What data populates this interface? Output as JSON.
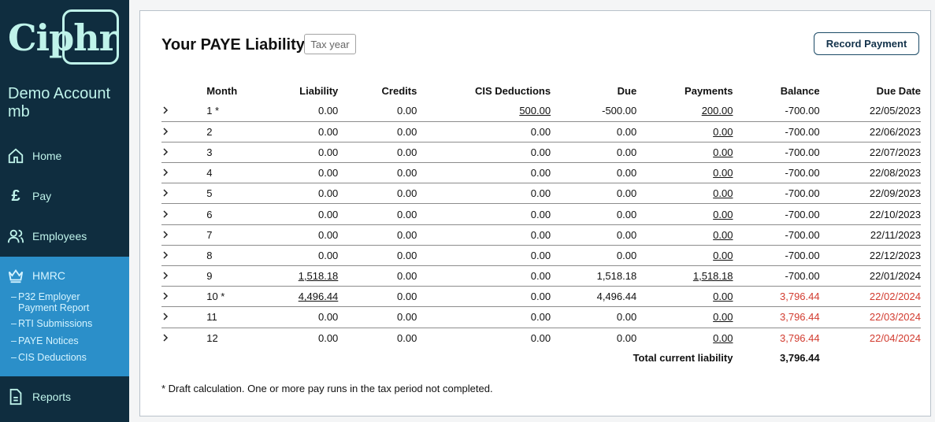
{
  "sidebar": {
    "logo": "Ciphr",
    "account": "Demo Account mb",
    "nav": [
      {
        "label": "Home",
        "icon": "home-icon"
      },
      {
        "label": "Pay",
        "icon": "pound-icon"
      },
      {
        "label": "Employees",
        "icon": "employees-icon"
      },
      {
        "label": "HMRC",
        "icon": "crown-icon"
      },
      {
        "label": "Reports",
        "icon": "document-icon"
      }
    ],
    "hmrc_sub": [
      {
        "label": "P32 Employer Payment Report"
      },
      {
        "label": "RTI Submissions"
      },
      {
        "label": "PAYE Notices"
      },
      {
        "label": "CIS Deductions"
      }
    ]
  },
  "main": {
    "title": "Your PAYE Liability",
    "tax_year_placeholder": "Tax year",
    "record_button": "Record Payment",
    "columns": [
      "Month",
      "Liability",
      "Credits",
      "CIS Deductions",
      "Due",
      "Payments",
      "Balance",
      "Due Date"
    ],
    "rows": [
      {
        "month": "1 *",
        "liability": "0.00",
        "credits": "0.00",
        "cis": "500.00",
        "due": "-500.00",
        "payments": "200.00",
        "balance": "-700.00",
        "due_date": "22/05/2023"
      },
      {
        "month": "2",
        "liability": "0.00",
        "credits": "0.00",
        "cis": "0.00",
        "due": "0.00",
        "payments": "0.00",
        "balance": "-700.00",
        "due_date": "22/06/2023"
      },
      {
        "month": "3",
        "liability": "0.00",
        "credits": "0.00",
        "cis": "0.00",
        "due": "0.00",
        "payments": "0.00",
        "balance": "-700.00",
        "due_date": "22/07/2023"
      },
      {
        "month": "4",
        "liability": "0.00",
        "credits": "0.00",
        "cis": "0.00",
        "due": "0.00",
        "payments": "0.00",
        "balance": "-700.00",
        "due_date": "22/08/2023"
      },
      {
        "month": "5",
        "liability": "0.00",
        "credits": "0.00",
        "cis": "0.00",
        "due": "0.00",
        "payments": "0.00",
        "balance": "-700.00",
        "due_date": "22/09/2023"
      },
      {
        "month": "6",
        "liability": "0.00",
        "credits": "0.00",
        "cis": "0.00",
        "due": "0.00",
        "payments": "0.00",
        "balance": "-700.00",
        "due_date": "22/10/2023"
      },
      {
        "month": "7",
        "liability": "0.00",
        "credits": "0.00",
        "cis": "0.00",
        "due": "0.00",
        "payments": "0.00",
        "balance": "-700.00",
        "due_date": "22/11/2023"
      },
      {
        "month": "8",
        "liability": "0.00",
        "credits": "0.00",
        "cis": "0.00",
        "due": "0.00",
        "payments": "0.00",
        "balance": "-700.00",
        "due_date": "22/12/2023"
      },
      {
        "month": "9",
        "liability": "1,518.18",
        "credits": "0.00",
        "cis": "0.00",
        "due": "1,518.18",
        "payments": "1,518.18",
        "balance": "-700.00",
        "due_date": "22/01/2024"
      },
      {
        "month": "10 *",
        "liability": "4,496.44",
        "credits": "0.00",
        "cis": "0.00",
        "due": "4,496.44",
        "payments": "0.00",
        "balance": "3,796.44",
        "due_date": "22/02/2024",
        "overdue": true
      },
      {
        "month": "11",
        "liability": "0.00",
        "credits": "0.00",
        "cis": "0.00",
        "due": "0.00",
        "payments": "0.00",
        "balance": "3,796.44",
        "due_date": "22/03/2024",
        "overdue": true
      },
      {
        "month": "12",
        "liability": "0.00",
        "credits": "0.00",
        "cis": "0.00",
        "due": "0.00",
        "payments": "0.00",
        "balance": "3,796.44",
        "due_date": "22/04/2024",
        "overdue": true
      }
    ],
    "total_label": "Total current liability",
    "total_value": "3,796.44",
    "footnote": "* Draft calculation. One or more pay runs in the tax period not completed."
  },
  "colors": {
    "sidebar_bg": "#0f2d3f",
    "sidebar_text": "#bff3ea",
    "hmrc_active": "#2b8fc9",
    "overdue": "#d23b2f"
  }
}
